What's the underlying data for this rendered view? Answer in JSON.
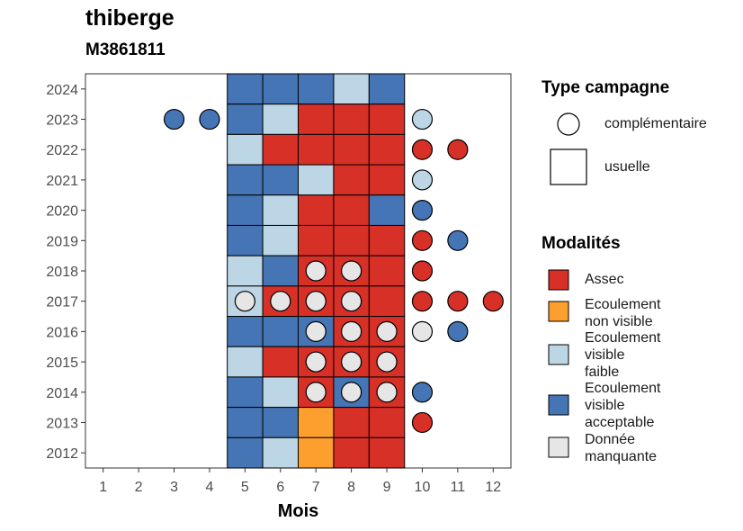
{
  "chart_data": {
    "type": "heatmap",
    "title": "thiberge",
    "subtitle": "M3861811",
    "xlabel": "Mois",
    "ylabel": "",
    "x_ticks": [
      1,
      2,
      3,
      4,
      5,
      6,
      7,
      8,
      9,
      10,
      11,
      12
    ],
    "y_ticks": [
      2012,
      2013,
      2014,
      2015,
      2016,
      2017,
      2018,
      2019,
      2020,
      2021,
      2022,
      2023,
      2024
    ],
    "colors": {
      "Assec": "#d73027",
      "Ecoulement non visible": "#fd9f2e",
      "Ecoulement visible faible": "#bcd6e6",
      "Ecoulement visible acceptable": "#4575b4",
      "Donnée manquante": "#e6e6e6"
    },
    "usuelle": [
      {
        "year": 2024,
        "months": {
          "5": "Ecoulement visible acceptable",
          "6": "Ecoulement visible acceptable",
          "7": "Ecoulement visible acceptable",
          "8": "Ecoulement visible faible",
          "9": "Ecoulement visible acceptable"
        }
      },
      {
        "year": 2023,
        "months": {
          "5": "Ecoulement visible acceptable",
          "6": "Ecoulement visible faible",
          "7": "Assec",
          "8": "Assec",
          "9": "Assec"
        }
      },
      {
        "year": 2022,
        "months": {
          "5": "Ecoulement visible faible",
          "6": "Assec",
          "7": "Assec",
          "8": "Assec",
          "9": "Assec"
        }
      },
      {
        "year": 2021,
        "months": {
          "5": "Ecoulement visible acceptable",
          "6": "Ecoulement visible acceptable",
          "7": "Ecoulement visible faible",
          "8": "Assec",
          "9": "Assec"
        }
      },
      {
        "year": 2020,
        "months": {
          "5": "Ecoulement visible acceptable",
          "6": "Ecoulement visible faible",
          "7": "Assec",
          "8": "Assec",
          "9": "Ecoulement visible acceptable"
        }
      },
      {
        "year": 2019,
        "months": {
          "5": "Ecoulement visible acceptable",
          "6": "Ecoulement visible faible",
          "7": "Assec",
          "8": "Assec",
          "9": "Assec"
        }
      },
      {
        "year": 2018,
        "months": {
          "5": "Ecoulement visible faible",
          "6": "Ecoulement visible acceptable",
          "7": "Assec",
          "8": "Assec",
          "9": "Assec"
        }
      },
      {
        "year": 2017,
        "months": {
          "5": "Ecoulement visible faible",
          "6": "Assec",
          "7": "Assec",
          "8": "Assec",
          "9": "Assec"
        }
      },
      {
        "year": 2016,
        "months": {
          "5": "Ecoulement visible acceptable",
          "6": "Ecoulement visible acceptable",
          "7": "Ecoulement visible acceptable",
          "8": "Assec",
          "9": "Assec"
        }
      },
      {
        "year": 2015,
        "months": {
          "5": "Ecoulement visible faible",
          "6": "Assec",
          "7": "Assec",
          "8": "Assec",
          "9": "Assec"
        }
      },
      {
        "year": 2014,
        "months": {
          "5": "Ecoulement visible acceptable",
          "6": "Ecoulement visible faible",
          "7": "Assec",
          "8": "Ecoulement visible acceptable",
          "9": "Assec"
        }
      },
      {
        "year": 2013,
        "months": {
          "5": "Ecoulement visible acceptable",
          "6": "Ecoulement visible acceptable",
          "7": "Ecoulement non visible",
          "8": "Assec",
          "9": "Assec"
        }
      },
      {
        "year": 2012,
        "months": {
          "5": "Ecoulement visible acceptable",
          "6": "Ecoulement visible faible",
          "7": "Ecoulement non visible",
          "8": "Assec",
          "9": "Assec"
        }
      }
    ],
    "complementaire": [
      {
        "year": 2023,
        "month": 3,
        "value": "Ecoulement visible acceptable"
      },
      {
        "year": 2023,
        "month": 4,
        "value": "Ecoulement visible acceptable"
      },
      {
        "year": 2023,
        "month": 10,
        "value": "Ecoulement visible faible"
      },
      {
        "year": 2022,
        "month": 10,
        "value": "Assec"
      },
      {
        "year": 2022,
        "month": 11,
        "value": "Assec"
      },
      {
        "year": 2021,
        "month": 10,
        "value": "Ecoulement visible faible"
      },
      {
        "year": 2020,
        "month": 10,
        "value": "Ecoulement visible acceptable"
      },
      {
        "year": 2019,
        "month": 10,
        "value": "Assec"
      },
      {
        "year": 2019,
        "month": 11,
        "value": "Ecoulement visible acceptable"
      },
      {
        "year": 2018,
        "month": 7,
        "value": "Donnée manquante"
      },
      {
        "year": 2018,
        "month": 8,
        "value": "Donnée manquante"
      },
      {
        "year": 2018,
        "month": 10,
        "value": "Assec"
      },
      {
        "year": 2017,
        "month": 5,
        "value": "Donnée manquante"
      },
      {
        "year": 2017,
        "month": 6,
        "value": "Donnée manquante"
      },
      {
        "year": 2017,
        "month": 7,
        "value": "Donnée manquante"
      },
      {
        "year": 2017,
        "month": 8,
        "value": "Donnée manquante"
      },
      {
        "year": 2017,
        "month": 10,
        "value": "Assec"
      },
      {
        "year": 2017,
        "month": 11,
        "value": "Assec"
      },
      {
        "year": 2017,
        "month": 12,
        "value": "Assec"
      },
      {
        "year": 2016,
        "month": 7,
        "value": "Donnée manquante"
      },
      {
        "year": 2016,
        "month": 8,
        "value": "Donnée manquante"
      },
      {
        "year": 2016,
        "month": 9,
        "value": "Donnée manquante"
      },
      {
        "year": 2016,
        "month": 10,
        "value": "Donnée manquante"
      },
      {
        "year": 2016,
        "month": 11,
        "value": "Ecoulement visible acceptable"
      },
      {
        "year": 2015,
        "month": 7,
        "value": "Donnée manquante"
      },
      {
        "year": 2015,
        "month": 8,
        "value": "Donnée manquante"
      },
      {
        "year": 2015,
        "month": 9,
        "value": "Donnée manquante"
      },
      {
        "year": 2014,
        "month": 7,
        "value": "Donnée manquante"
      },
      {
        "year": 2014,
        "month": 8,
        "value": "Donnée manquante"
      },
      {
        "year": 2014,
        "month": 9,
        "value": "Donnée manquante"
      },
      {
        "year": 2014,
        "month": 10,
        "value": "Ecoulement visible acceptable"
      },
      {
        "year": 2013,
        "month": 10,
        "value": "Assec"
      }
    ],
    "legend": {
      "type_title": "Type campagne",
      "type_items": [
        "complémentaire",
        "usuelle"
      ],
      "modal_title": "Modalités",
      "modal_items": [
        {
          "label_lines": [
            "Assec"
          ],
          "key": "Assec"
        },
        {
          "label_lines": [
            "Ecoulement",
            "non visible"
          ],
          "key": "Ecoulement non visible"
        },
        {
          "label_lines": [
            "Ecoulement",
            "visible",
            "faible"
          ],
          "key": "Ecoulement visible faible"
        },
        {
          "label_lines": [
            "Ecoulement",
            "visible",
            "acceptable"
          ],
          "key": "Ecoulement visible acceptable"
        },
        {
          "label_lines": [
            "Donnée",
            "manquante"
          ],
          "key": "Donnée manquante"
        }
      ]
    }
  }
}
